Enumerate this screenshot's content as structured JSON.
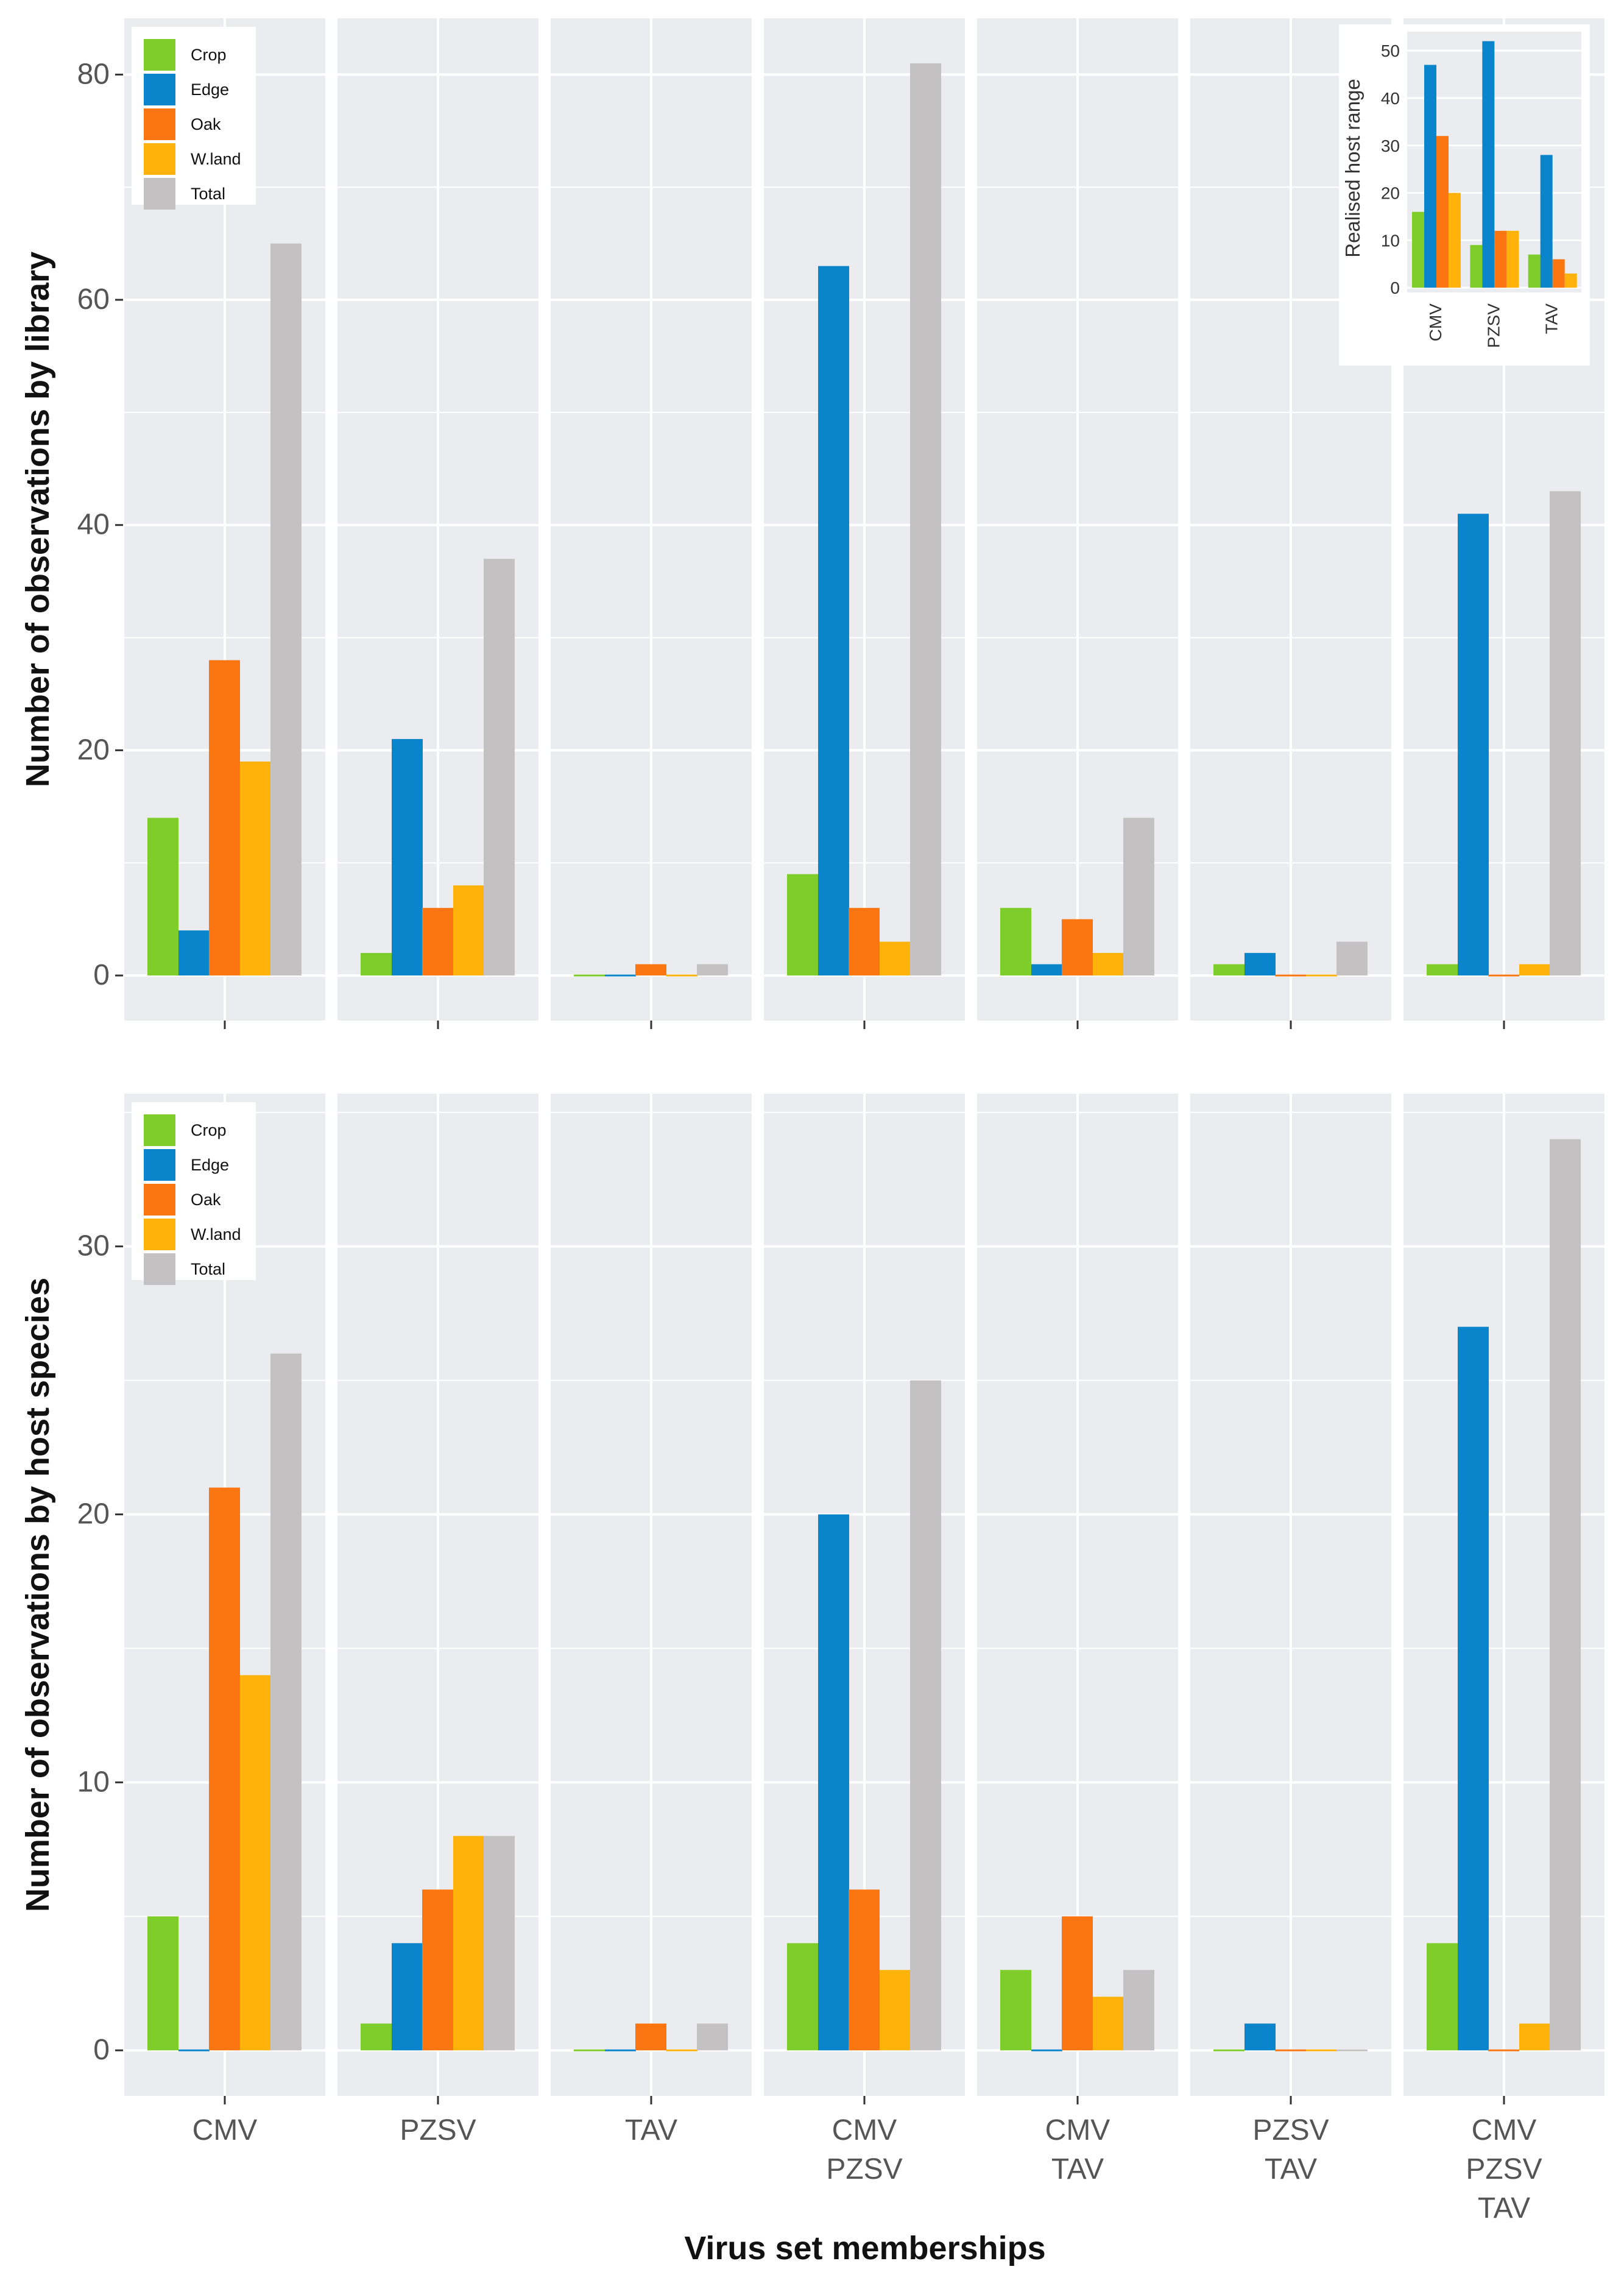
{
  "colors": {
    "Crop": "#7fcd2a",
    "Edge": "#0a85cb",
    "Oak": "#fb7610",
    "W.land": "#ffb20a",
    "Total": "#c3c1c1",
    "panel_bg": "#eaecf0",
    "grid": "#ffffff"
  },
  "chart_data": [
    {
      "type": "bar",
      "id": "library",
      "ylabel": "Number of observations by library",
      "ylim": [
        -4,
        85
      ],
      "yticks": [
        0,
        20,
        40,
        60,
        80
      ],
      "facets": [
        "CMV",
        "PZSV",
        "TAV",
        "CMV PZSV",
        "CMV TAV",
        "PZSV TAV",
        "CMV PZSV TAV"
      ],
      "series_names": [
        "Crop",
        "Edge",
        "Oak",
        "W.land",
        "Total"
      ],
      "values": [
        [
          14,
          4,
          28,
          19,
          65
        ],
        [
          2,
          21,
          6,
          8,
          37
        ],
        [
          0,
          0,
          1,
          0,
          1
        ],
        [
          9,
          63,
          6,
          3,
          81
        ],
        [
          6,
          1,
          5,
          2,
          14
        ],
        [
          1,
          2,
          0,
          0,
          3
        ],
        [
          1,
          41,
          0,
          1,
          43
        ]
      ],
      "legend": [
        "Crop",
        "Edge",
        "Oak",
        "W.land",
        "Total"
      ]
    },
    {
      "type": "bar",
      "id": "host_species",
      "ylabel": "Number of observations by host species",
      "ylim": [
        -1.7,
        35.7
      ],
      "yticks": [
        0,
        10,
        20,
        30
      ],
      "facets": [
        "CMV",
        "PZSV",
        "TAV",
        "CMV PZSV",
        "CMV TAV",
        "PZSV TAV",
        "CMV PZSV TAV"
      ],
      "series_names": [
        "Crop",
        "Edge",
        "Oak",
        "W.land",
        "Total"
      ],
      "values": [
        [
          5,
          0,
          21,
          14,
          26
        ],
        [
          1,
          4,
          6,
          8,
          8
        ],
        [
          0,
          0,
          1,
          0,
          1
        ],
        [
          4,
          20,
          6,
          3,
          25
        ],
        [
          3,
          0,
          5,
          2,
          3
        ],
        [
          0,
          1,
          0,
          0,
          0
        ],
        [
          4,
          27,
          0,
          1,
          34
        ]
      ],
      "legend": [
        "Crop",
        "Edge",
        "Oak",
        "W.land",
        "Total"
      ],
      "xlabel": "Virus set memberships",
      "x_tick_lines": [
        [
          "CMV"
        ],
        [
          "PZSV"
        ],
        [
          "TAV"
        ],
        [
          "CMV",
          "PZSV"
        ],
        [
          "CMV",
          "TAV"
        ],
        [
          "PZSV",
          "TAV"
        ],
        [
          "CMV",
          "PZSV",
          "TAV"
        ]
      ]
    },
    {
      "type": "bar",
      "id": "inset_host_range",
      "ylabel": "Realised host range",
      "ylim": [
        -1,
        54
      ],
      "yticks": [
        0,
        10,
        20,
        30,
        40,
        50
      ],
      "categories": [
        "CMV",
        "PZSV",
        "TAV"
      ],
      "series": [
        {
          "name": "Crop",
          "values": [
            16,
            9,
            7
          ]
        },
        {
          "name": "Edge",
          "values": [
            47,
            52,
            28
          ]
        },
        {
          "name": "Oak",
          "values": [
            32,
            12,
            6
          ]
        },
        {
          "name": "W.land",
          "values": [
            20,
            12,
            3
          ]
        }
      ]
    }
  ]
}
